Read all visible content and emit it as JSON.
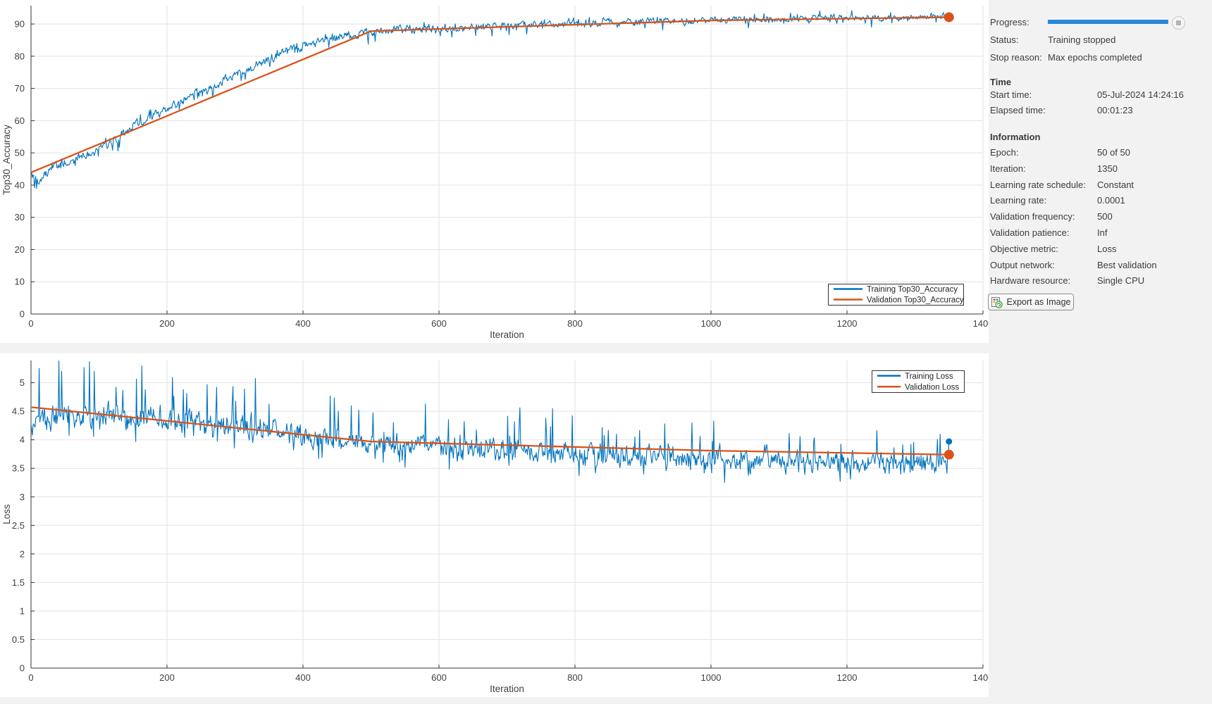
{
  "panel": {
    "progress_label": "Progress:",
    "progress_percent": 100,
    "status_label": "Status:",
    "status_value": "Training stopped",
    "stop_reason_label": "Stop reason:",
    "stop_reason_value": "Max epochs completed",
    "time_heading": "Time",
    "time_rows": [
      {
        "label": "Start time:",
        "value": "05-Jul-2024 14:24:16"
      },
      {
        "label": "Elapsed time:",
        "value": "00:01:23"
      }
    ],
    "info_heading": "Information",
    "info_rows": [
      {
        "label": "Epoch:",
        "value": "50 of 50"
      },
      {
        "label": "Iteration:",
        "value": "1350"
      },
      {
        "label": "Learning rate schedule:",
        "value": "Constant"
      },
      {
        "label": "Learning rate:",
        "value": "0.0001"
      },
      {
        "label": "Validation frequency:",
        "value": "500"
      },
      {
        "label": "Validation patience:",
        "value": "Inf"
      },
      {
        "label": "Objective metric:",
        "value": "Loss"
      },
      {
        "label": "Output network:",
        "value": "Best validation"
      },
      {
        "label": "Hardware resource:",
        "value": "Single CPU"
      }
    ],
    "export_button_label": "Export as Image"
  },
  "colors": {
    "training_line": "#0072BD",
    "validation_line": "#D95319",
    "progress_bar": "#2787d8",
    "grid": "#e2e2e2",
    "axis": "#333333",
    "tick_text": "#3f3f3f"
  },
  "chart_data": [
    {
      "type": "line",
      "title": "",
      "xlabel": "Iteration",
      "ylabel": "Top30_Accuracy",
      "xlim": [
        0,
        1400
      ],
      "ylim": [
        0,
        95.7
      ],
      "xticks": [
        0,
        200,
        400,
        600,
        800,
        1000,
        1200,
        1400
      ],
      "yticks": [
        0,
        10,
        20,
        30,
        40,
        50,
        60,
        70,
        80,
        90
      ],
      "grid": true,
      "legend_location": "southeast",
      "legend": [
        "Training Top30_Accuracy",
        "Validation Top30_Accuracy"
      ],
      "series": [
        {
          "name": "Training Top30_Accuracy",
          "kind": "noisy",
          "color": "#0072BD",
          "anchors": [
            [
              0,
              44
            ],
            [
              12,
              41
            ],
            [
              30,
              45.5
            ],
            [
              60,
              47.5
            ],
            [
              90,
              50
            ],
            [
              120,
              54
            ],
            [
              150,
              58
            ],
            [
              180,
              61.5
            ],
            [
              210,
              64.5
            ],
            [
              240,
              68
            ],
            [
              270,
              71
            ],
            [
              300,
              74
            ],
            [
              330,
              77
            ],
            [
              360,
              80
            ],
            [
              390,
              82.5
            ],
            [
              420,
              84.5
            ],
            [
              450,
              86
            ],
            [
              480,
              87
            ],
            [
              510,
              87.6
            ],
            [
              560,
              88.2
            ],
            [
              620,
              88.8
            ],
            [
              700,
              89.5
            ],
            [
              800,
              90.2
            ],
            [
              900,
              90.8
            ],
            [
              1000,
              91.2
            ],
            [
              1100,
              91.5
            ],
            [
              1200,
              91.8
            ],
            [
              1350,
              92.2
            ]
          ],
          "noise_amp": [
            [
              0,
              1.9
            ],
            [
              400,
              1.7
            ],
            [
              800,
              1.35
            ],
            [
              1350,
              1.2
            ]
          ],
          "spike_up": {
            "p": 0.05,
            "base": 0.7,
            "extra": 1.1,
            "decay": 0.3
          },
          "spike_down": {
            "p": 0.06,
            "base": 0.8,
            "extra": 2.0,
            "decay": 0.25
          },
          "clamp": [
            37,
            95.5
          ],
          "x_end": 1350,
          "final_value": 92.3,
          "end_marker_radius": 4.5
        },
        {
          "name": "Validation Top30_Accuracy",
          "kind": "points",
          "color": "#D95319",
          "points": [
            [
              1,
              44
            ],
            [
              500,
              87.8
            ],
            [
              1000,
              91.1
            ],
            [
              1350,
              92.1
            ]
          ],
          "end_marker_radius": 7
        }
      ]
    },
    {
      "type": "line",
      "title": "",
      "xlabel": "Iteration",
      "ylabel": "Loss",
      "xlim": [
        0,
        1400
      ],
      "ylim": [
        0,
        5.39
      ],
      "xticks": [
        0,
        200,
        400,
        600,
        800,
        1000,
        1200,
        1400
      ],
      "yticks": [
        0,
        0.5,
        1,
        1.5,
        2,
        2.5,
        3,
        3.5,
        4,
        4.5,
        5
      ],
      "grid": true,
      "legend_location": "northeast",
      "legend": [
        "Training Loss",
        "Validation Loss"
      ],
      "series": [
        {
          "name": "Training Loss",
          "kind": "noisy",
          "color": "#0072BD",
          "anchors": [
            [
              0,
              4.25
            ],
            [
              40,
              4.42
            ],
            [
              100,
              4.45
            ],
            [
              200,
              4.36
            ],
            [
              300,
              4.24
            ],
            [
              400,
              4.1
            ],
            [
              500,
              3.97
            ],
            [
              600,
              3.89
            ],
            [
              700,
              3.83
            ],
            [
              800,
              3.77
            ],
            [
              900,
              3.71
            ],
            [
              1000,
              3.67
            ],
            [
              1100,
              3.63
            ],
            [
              1200,
              3.6
            ],
            [
              1300,
              3.58
            ],
            [
              1350,
              3.6
            ]
          ],
          "noise_amp": [
            [
              0,
              0.26
            ],
            [
              500,
              0.24
            ],
            [
              1350,
              0.22
            ]
          ],
          "spike_up": {
            "p": 0.07,
            "base": 0.3,
            "extra": 0.65,
            "decay": 0.5
          },
          "spike_down": {
            "p": 0.05,
            "base": 0.12,
            "extra": 0.18,
            "decay": 0
          },
          "clamp": [
            3.2,
            5.38
          ],
          "x_end": 1350,
          "final_value": 3.97,
          "end_marker_radius": 4.5
        },
        {
          "name": "Validation Loss",
          "kind": "points",
          "color": "#D95319",
          "points": [
            [
              1,
              4.57
            ],
            [
              500,
              3.97
            ],
            [
              1000,
              3.81
            ],
            [
              1350,
              3.74
            ]
          ],
          "end_marker_radius": 7
        }
      ]
    }
  ]
}
